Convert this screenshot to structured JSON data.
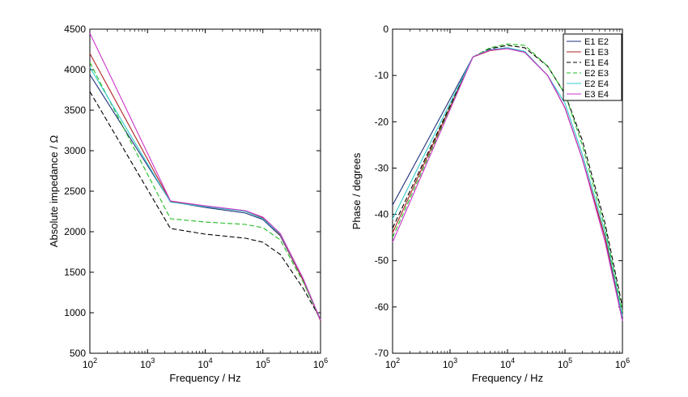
{
  "colors": {
    "E1 E2": "#1f2f7a",
    "E1 E3": "#b22222",
    "E1 E4": "#000000",
    "E2 E3": "#22bb22",
    "E2 E4": "#33cccc",
    "E3 E4": "#cc33cc"
  },
  "chart_data": [
    {
      "type": "line",
      "xscale": "log",
      "xlim": [
        100,
        1000000
      ],
      "ylim": [
        500,
        4500
      ],
      "xlabel": "Frequency / Hz",
      "ylabel": "Absolute impedance / Ω",
      "xticks": [
        100,
        1000,
        10000,
        100000,
        1000000
      ],
      "xtick_labels": [
        "10^2",
        "10^3",
        "10^4",
        "10^5",
        "10^6"
      ],
      "yticks": [
        500,
        1000,
        1500,
        2000,
        2500,
        3000,
        3500,
        4000,
        4500
      ],
      "ytick_labels": [
        "500",
        "1000",
        "1500",
        "2000",
        "2500",
        "3000",
        "3500",
        "4000",
        "4500"
      ],
      "legend": false,
      "series": [
        {
          "name": "E1 E2",
          "style": "solid",
          "x": [
            100,
            2500,
            10000,
            50000,
            100000,
            200000,
            500000,
            1000000
          ],
          "y": [
            3940,
            2370,
            2300,
            2230,
            2150,
            1950,
            1400,
            900
          ]
        },
        {
          "name": "E1 E3",
          "style": "solid",
          "x": [
            100,
            2500,
            10000,
            50000,
            100000,
            200000,
            500000,
            1000000
          ],
          "y": [
            4200,
            2375,
            2310,
            2250,
            2170,
            1960,
            1400,
            900
          ]
        },
        {
          "name": "E1 E4",
          "style": "dashed",
          "x": [
            100,
            2500,
            10000,
            50000,
            100000,
            200000,
            500000,
            1000000
          ],
          "y": [
            3730,
            2040,
            1970,
            1920,
            1870,
            1720,
            1300,
            920
          ]
        },
        {
          "name": "E2 E3",
          "style": "dashed",
          "x": [
            100,
            2500,
            10000,
            50000,
            100000,
            200000,
            500000,
            1000000
          ],
          "y": [
            4090,
            2160,
            2120,
            2090,
            2050,
            1900,
            1380,
            910
          ]
        },
        {
          "name": "E2 E4",
          "style": "solid",
          "x": [
            100,
            2500,
            10000,
            50000,
            100000,
            200000,
            500000,
            1000000
          ],
          "y": [
            4030,
            2365,
            2310,
            2250,
            2160,
            1970,
            1420,
            910
          ]
        },
        {
          "name": "E3 E4",
          "style": "solid",
          "x": [
            100,
            2500,
            10000,
            50000,
            100000,
            200000,
            500000,
            1000000
          ],
          "y": [
            4450,
            2380,
            2320,
            2260,
            2180,
            1980,
            1420,
            910
          ]
        }
      ]
    },
    {
      "type": "line",
      "xscale": "log",
      "xlim": [
        100,
        1000000
      ],
      "ylim": [
        -70,
        0
      ],
      "xlabel": "Frequency / Hz",
      "ylabel": "Phase / degrees",
      "xticks": [
        100,
        1000,
        10000,
        100000,
        1000000
      ],
      "xtick_labels": [
        "10^2",
        "10^3",
        "10^4",
        "10^5",
        "10^6"
      ],
      "yticks": [
        -70,
        -60,
        -50,
        -40,
        -30,
        -20,
        -10,
        0
      ],
      "ytick_labels": [
        "-70",
        "-60",
        "-50",
        "-40",
        "-30",
        "-20",
        "-10",
        "0"
      ],
      "legend": "top-right",
      "series": [
        {
          "name": "E1 E2",
          "style": "solid",
          "x": [
            100,
            2500,
            5000,
            10000,
            20000,
            50000,
            100000,
            200000,
            500000,
            1000000
          ],
          "y": [
            -38,
            -6,
            -4.5,
            -4,
            -5,
            -10,
            -17,
            -28,
            -45,
            -63
          ]
        },
        {
          "name": "E1 E3",
          "style": "solid",
          "x": [
            100,
            2500,
            5000,
            10000,
            20000,
            50000,
            100000,
            200000,
            500000,
            1000000
          ],
          "y": [
            -44,
            -6,
            -4.6,
            -4.2,
            -5,
            -10,
            -17,
            -28,
            -45,
            -62
          ]
        },
        {
          "name": "E1 E4",
          "style": "dashed",
          "x": [
            100,
            2500,
            5000,
            10000,
            20000,
            50000,
            100000,
            200000,
            500000,
            1000000
          ],
          "y": [
            -43,
            -6,
            -4.2,
            -3.5,
            -4,
            -8,
            -14,
            -24,
            -42,
            -60
          ]
        },
        {
          "name": "E2 E3",
          "style": "dashed",
          "x": [
            100,
            2500,
            5000,
            10000,
            20000,
            50000,
            100000,
            200000,
            500000,
            1000000
          ],
          "y": [
            -45,
            -6,
            -4.0,
            -3.2,
            -3.5,
            -8,
            -14,
            -25,
            -43,
            -61
          ]
        },
        {
          "name": "E2 E4",
          "style": "solid",
          "x": [
            100,
            2500,
            5000,
            10000,
            20000,
            50000,
            100000,
            200000,
            500000,
            1000000
          ],
          "y": [
            -41,
            -6,
            -4.4,
            -4,
            -4.8,
            -10,
            -16,
            -27,
            -44,
            -62
          ]
        },
        {
          "name": "E3 E4",
          "style": "solid",
          "x": [
            100,
            2500,
            5000,
            10000,
            20000,
            50000,
            100000,
            200000,
            500000,
            1000000
          ],
          "y": [
            -46,
            -6,
            -4.5,
            -4.2,
            -5,
            -10,
            -17,
            -28,
            -46,
            -63
          ]
        }
      ]
    }
  ]
}
